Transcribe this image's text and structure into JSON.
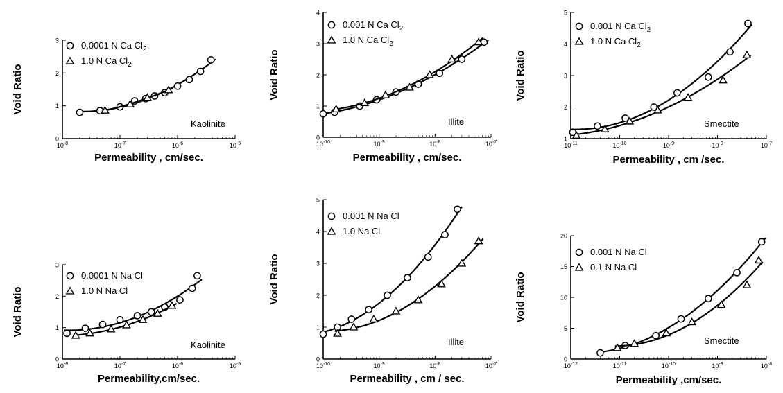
{
  "chart_data": [
    {
      "type": "scatter",
      "mineral": "Kaolinite",
      "xlabel": "Permeability , cm/sec.",
      "ylabel": "Void Ratio",
      "xscale": "log",
      "xlim_exp": [
        -8,
        -5
      ],
      "ylim": [
        0,
        3
      ],
      "yticks": [
        "0",
        "1",
        "2",
        "3"
      ],
      "legend_position": "top-left",
      "series": [
        {
          "name": "0.0001 N Ca Cl2",
          "marker": "circle",
          "x": [
            2e-08,
            4.5e-08,
            1e-07,
            1.8e-07,
            2.8e-07,
            4e-07,
            6e-07,
            1e-06,
            1.6e-06,
            2.5e-06,
            3.8e-06
          ],
          "y": [
            0.8,
            0.85,
            0.97,
            1.15,
            1.22,
            1.3,
            1.4,
            1.6,
            1.8,
            2.05,
            2.4
          ]
        },
        {
          "name": "1.0 N Ca Cl2",
          "marker": "triangle",
          "x": [
            5.5e-08,
            1.5e-07,
            3e-07,
            7e-07
          ],
          "y": [
            0.86,
            1.05,
            1.25,
            1.48
          ]
        }
      ]
    },
    {
      "type": "scatter",
      "mineral": "Illite",
      "xlabel": "Permeability , cm/sec.",
      "ylabel": "Void Ratio",
      "xscale": "log",
      "xlim_exp": [
        -10,
        -7
      ],
      "ylim": [
        0,
        4
      ],
      "yticks": [
        "0",
        "1",
        "2",
        "3",
        "4"
      ],
      "legend_position": "top-left",
      "series": [
        {
          "name": "0.001 N Ca Cl2",
          "marker": "circle",
          "x": [
            1e-10,
            1.6e-10,
            4.5e-10,
            9e-10,
            2e-09,
            5e-09,
            1.2e-08,
            3e-08,
            7.5e-08
          ],
          "y": [
            0.75,
            0.8,
            1.0,
            1.2,
            1.45,
            1.7,
            2.05,
            2.5,
            3.05
          ]
        },
        {
          "name": "1.0 N Ca Cl2",
          "marker": "triangle",
          "x": [
            1.7e-10,
            5.5e-10,
            1.3e-09,
            3.5e-09,
            8e-09,
            2e-08,
            6e-08
          ],
          "y": [
            0.9,
            1.1,
            1.35,
            1.6,
            2.0,
            2.5,
            3.05
          ]
        }
      ]
    },
    {
      "type": "scatter",
      "mineral": "Smectite",
      "xlabel": "Permeability , cm /sec.",
      "ylabel": "Void Ratio",
      "xscale": "log",
      "xlim_exp": [
        -11,
        -7
      ],
      "ylim": [
        1,
        5
      ],
      "yticks": [
        "1",
        "2",
        "3",
        "4",
        "5"
      ],
      "legend_position": "top-left",
      "series": [
        {
          "name": "0.001 N Ca Cl2",
          "marker": "circle",
          "x": [
            1.1e-11,
            3.5e-11,
            1.3e-10,
            5e-10,
            1.5e-09,
            6.5e-09,
            1.8e-08,
            4.2e-08
          ],
          "y": [
            1.2,
            1.4,
            1.65,
            2.0,
            2.45,
            2.95,
            3.75,
            4.65
          ]
        },
        {
          "name": "1.0 N Ca Cl2",
          "marker": "triangle",
          "x": [
            1.3e-11,
            5e-11,
            1.6e-10,
            6e-10,
            2.5e-09,
            1.3e-08,
            4e-08
          ],
          "y": [
            1.1,
            1.3,
            1.55,
            1.9,
            2.3,
            2.85,
            3.65
          ]
        }
      ]
    },
    {
      "type": "scatter",
      "mineral": "Kaolinite",
      "xlabel": "Permeability,cm/sec.",
      "ylabel": "Void Ratio",
      "xscale": "log",
      "xlim_exp": [
        -8,
        -5
      ],
      "ylim": [
        0,
        3
      ],
      "yticks": [
        "0",
        "1",
        "2",
        "3"
      ],
      "legend_position": "top-left",
      "series": [
        {
          "name": "0.0001 N Na Cl",
          "marker": "circle",
          "x": [
            1.2e-08,
            2.5e-08,
            5e-08,
            1e-07,
            2e-07,
            3.5e-07,
            6e-07,
            1.1e-06,
            1.8e-06,
            2.2e-06
          ],
          "y": [
            0.82,
            0.98,
            1.1,
            1.25,
            1.38,
            1.5,
            1.65,
            1.88,
            2.25,
            2.65
          ]
        },
        {
          "name": "1.0 N Na Cl",
          "marker": "triangle",
          "x": [
            1.7e-08,
            3e-08,
            7e-08,
            1.3e-07,
            2.5e-07,
            4.5e-07,
            8e-07
          ],
          "y": [
            0.75,
            0.82,
            0.95,
            1.08,
            1.25,
            1.45,
            1.7
          ]
        }
      ]
    },
    {
      "type": "scatter",
      "mineral": "Illite",
      "xlabel": "Permeability , cm / sec.",
      "ylabel": "Void Ratio",
      "xscale": "log",
      "xlim_exp": [
        -10,
        -7
      ],
      "ylim": [
        0,
        5
      ],
      "yticks": [
        "0",
        "1",
        "2",
        "3",
        "4",
        "5"
      ],
      "legend_position": "top-left",
      "series": [
        {
          "name": "0.001 N Na Cl",
          "marker": "circle",
          "x": [
            1e-10,
            1.8e-10,
            3.2e-10,
            6.5e-10,
            1.4e-09,
            3.2e-09,
            7.5e-09,
            1.5e-08,
            2.5e-08
          ],
          "y": [
            0.78,
            1.0,
            1.25,
            1.55,
            2.0,
            2.55,
            3.2,
            3.9,
            4.7
          ]
        },
        {
          "name": "1.0 Na Cl",
          "marker": "triangle",
          "x": [
            1.8e-10,
            3.5e-10,
            8e-10,
            2e-09,
            5e-09,
            1.3e-08,
            3e-08,
            6e-08
          ],
          "y": [
            0.8,
            1.0,
            1.25,
            1.5,
            1.85,
            2.35,
            3.0,
            3.7
          ]
        }
      ]
    },
    {
      "type": "scatter",
      "mineral": "Smectite",
      "xlabel": "Permeability ,cm/sec.",
      "ylabel": "Void Ratio",
      "xscale": "log",
      "xlim_exp": [
        -12,
        -8
      ],
      "ylim": [
        0,
        20
      ],
      "yticks": [
        "0",
        "5",
        "10",
        "15",
        "20"
      ],
      "legend_position": "top-left",
      "series": [
        {
          "name": "0.001 N Na Cl",
          "marker": "circle",
          "x": [
            4e-12,
            1.3e-11,
            5.5e-11,
            1.8e-10,
            6.5e-10,
            2.5e-09,
            8e-09
          ],
          "y": [
            1.0,
            2.2,
            3.8,
            6.5,
            9.8,
            14.0,
            19.0
          ]
        },
        {
          "name": "0.1 N Na Cl",
          "marker": "triangle",
          "x": [
            9e-12,
            2e-11,
            9e-11,
            3e-10,
            1.2e-09,
            4e-09,
            7e-09
          ],
          "y": [
            1.8,
            2.5,
            4.2,
            6.0,
            8.8,
            12.0,
            16.0
          ]
        }
      ]
    }
  ]
}
